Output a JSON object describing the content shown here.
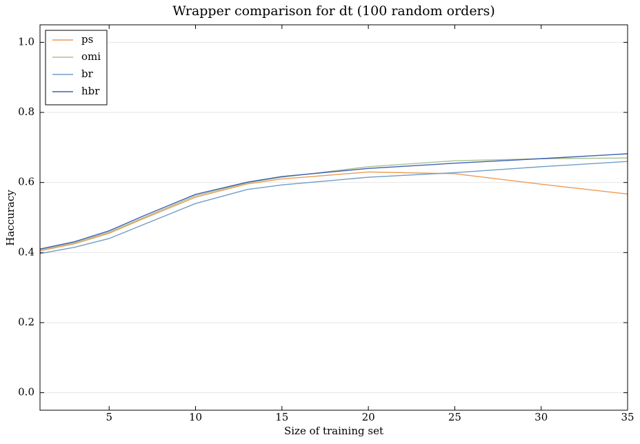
{
  "chart_data": {
    "type": "line",
    "title": "Wrapper comparison for dt (100 random orders)",
    "x_label": "Size of training set",
    "y_label": "Haccuracy",
    "x": [
      1,
      3,
      5,
      7,
      10,
      13,
      15,
      20,
      25,
      30,
      35
    ],
    "series": [
      {
        "name": "ps",
        "color": "#ee9a52",
        "values": [
          0.405,
          0.425,
          0.455,
          0.497,
          0.558,
          0.596,
          0.61,
          0.63,
          0.625,
          0.595,
          0.567
        ]
      },
      {
        "name": "omi",
        "color": "#a9c08c",
        "values": [
          0.408,
          0.428,
          0.458,
          0.5,
          0.562,
          0.599,
          0.615,
          0.645,
          0.662,
          0.668,
          0.67
        ]
      },
      {
        "name": "br",
        "color": "#6e9cc8",
        "values": [
          0.397,
          0.415,
          0.44,
          0.48,
          0.54,
          0.58,
          0.593,
          0.615,
          0.628,
          0.645,
          0.66
        ]
      },
      {
        "name": "hbr",
        "color": "#3d5fb5",
        "values": [
          0.41,
          0.431,
          0.462,
          0.505,
          0.566,
          0.601,
          0.617,
          0.64,
          0.655,
          0.668,
          0.682
        ]
      }
    ],
    "xlim": [
      1,
      35
    ],
    "xticks": [
      5,
      10,
      15,
      20,
      25,
      30,
      35
    ],
    "ylim": [
      -0.05,
      1.05
    ],
    "yticks": [
      {
        "value": 0,
        "label": "0.0"
      },
      0.2,
      0.4,
      0.6,
      0.8,
      {
        "value": 1,
        "label": "1.0"
      }
    ],
    "grid": true,
    "legend": "upper-left"
  }
}
